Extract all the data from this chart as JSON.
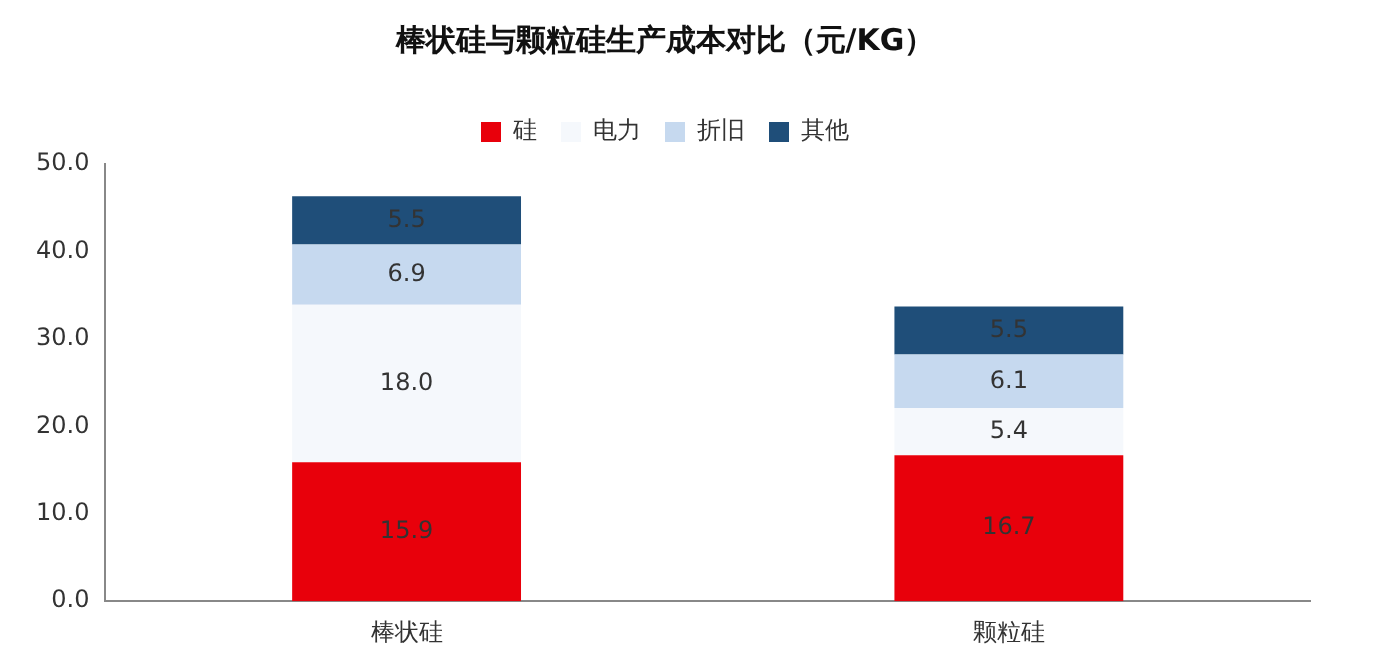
{
  "chart_data": {
    "type": "bar",
    "title": "棒状硅与颗粒硅生产成本对比（元/KG）",
    "categories": [
      "棒状硅",
      "颗粒硅"
    ],
    "stacked": true,
    "legend": "top",
    "grid": false,
    "series": [
      {
        "name": "硅",
        "color": "#e8000b",
        "values": [
          15.9,
          16.7
        ],
        "value_labels": [
          "15.9",
          "16.7"
        ]
      },
      {
        "name": "电力",
        "color": "#f5f8fc",
        "values": [
          18.0,
          5.4
        ],
        "value_labels": [
          "18.0",
          "5.4"
        ]
      },
      {
        "name": "折旧",
        "color": "#c6d9ef",
        "values": [
          6.9,
          6.1
        ],
        "value_labels": [
          "6.9",
          "6.1"
        ]
      },
      {
        "name": "其他",
        "color": "#1f4e79",
        "values": [
          5.5,
          5.5
        ],
        "value_labels": [
          "5.5",
          "5.5"
        ]
      }
    ],
    "ylim": [
      0,
      50
    ],
    "yticks": [
      {
        "value": 0,
        "label": "0.0"
      },
      {
        "value": 10,
        "label": "10.0"
      },
      {
        "value": 20,
        "label": "20.0"
      },
      {
        "value": 30,
        "label": "30.0"
      },
      {
        "value": 40,
        "label": "40.0"
      },
      {
        "value": 50,
        "label": "50.0"
      }
    ]
  }
}
